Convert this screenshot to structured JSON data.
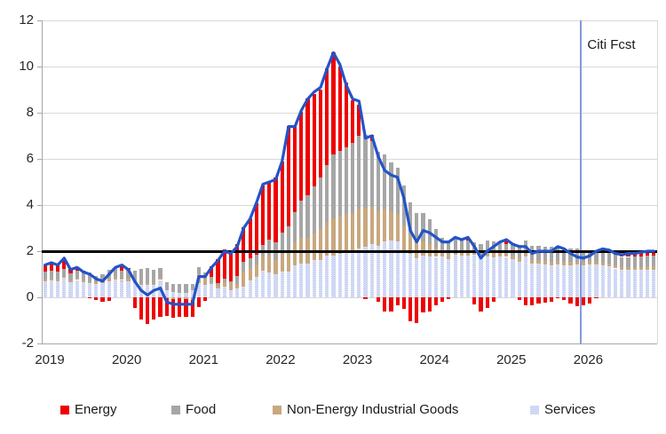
{
  "chart_data": {
    "type": "bar",
    "subtype": "stacked-monthly-contribution-bars-with-headline-line",
    "title": "",
    "x_axis": {
      "tick_labels": [
        "2019",
        "2020",
        "2021",
        "2022",
        "2023",
        "2024",
        "2025",
        "2026"
      ],
      "months_per_year": 12,
      "total_months": 96
    },
    "y_axis": {
      "min": -2,
      "max": 12,
      "step": 2,
      "ticks": [
        12,
        10,
        8,
        6,
        4,
        2,
        0,
        -2
      ],
      "tick_labels": [
        "12",
        "10",
        "8",
        "6",
        "4",
        "2",
        "0",
        "-2"
      ],
      "grid_color": "#d9d9d9"
    },
    "target_line": {
      "value": 2,
      "color": "#000000"
    },
    "forecast": {
      "label": "Citi Fcst",
      "start_month_index": 84,
      "line_color": "#849ade"
    },
    "line": {
      "color": "#2353c8",
      "values": [
        1.4,
        1.5,
        1.4,
        1.7,
        1.2,
        1.3,
        1.1,
        1.0,
        0.8,
        0.7,
        1.0,
        1.3,
        1.4,
        1.2,
        0.7,
        0.3,
        0.1,
        0.3,
        0.4,
        -0.2,
        -0.3,
        -0.3,
        -0.3,
        -0.3,
        0.9,
        0.9,
        1.3,
        1.6,
        2.0,
        1.9,
        2.2,
        3.0,
        3.4,
        4.1,
        4.9,
        5.0,
        5.1,
        5.9,
        7.4,
        7.4,
        8.1,
        8.6,
        8.9,
        9.1,
        9.9,
        10.6,
        10.1,
        9.2,
        8.6,
        8.5,
        6.9,
        7.0,
        6.1,
        5.5,
        5.3,
        5.2,
        4.3,
        2.9,
        2.4,
        2.9,
        2.8,
        2.6,
        2.4,
        2.4,
        2.6,
        2.5,
        2.6,
        2.2,
        1.7,
        2.0,
        2.2,
        2.4,
        2.5,
        2.3,
        2.2,
        2.2,
        1.9,
        2.0,
        2.0,
        2.0,
        2.2,
        2.1,
        1.9,
        1.75,
        1.7,
        1.8,
        2.0,
        2.1,
        2.05,
        1.9,
        1.85,
        1.9,
        1.9,
        1.95,
        2.0,
        2.0
      ]
    },
    "stack_order_bottom_to_top": [
      "Services",
      "Non-Energy Industrial Goods",
      "Food",
      "Energy"
    ],
    "series": [
      {
        "name": "Energy",
        "color": "#ee0000",
        "values": [
          0.25,
          0.3,
          0.3,
          0.45,
          0.2,
          0.15,
          0.05,
          -0.05,
          -0.1,
          -0.2,
          -0.15,
          0.02,
          0.18,
          0.04,
          -0.45,
          -0.95,
          -1.15,
          -0.95,
          -0.84,
          -0.78,
          -0.81,
          -0.8,
          -0.78,
          -0.7,
          -0.42,
          -0.17,
          0.43,
          1.02,
          1.28,
          1.23,
          1.4,
          1.51,
          1.72,
          2.21,
          2.57,
          2.46,
          2.8,
          3.1,
          4.36,
          3.7,
          3.87,
          4.19,
          3.99,
          3.8,
          4.19,
          4.44,
          3.67,
          2.79,
          1.85,
          1.36,
          -0.09,
          0.25,
          -0.18,
          -0.62,
          -0.62,
          -0.34,
          -0.51,
          -1.05,
          -1.1,
          -0.67,
          -0.63,
          -0.36,
          -0.18,
          -0.06,
          0.03,
          0.02,
          0.12,
          -0.3,
          -0.6,
          -0.46,
          -0.19,
          0.01,
          0.18,
          0.02,
          -0.1,
          -0.35,
          -0.36,
          -0.27,
          -0.24,
          -0.19,
          -0.04,
          -0.1,
          -0.25,
          -0.4,
          -0.35,
          -0.25,
          -0.05,
          0.1,
          0.12,
          0.1,
          0.12,
          0.15,
          0.15,
          0.17,
          0.18,
          0.18
        ]
      },
      {
        "name": "Food",
        "color": "#a6a6a6",
        "values": [
          0.35,
          0.35,
          0.33,
          0.32,
          0.3,
          0.32,
          0.35,
          0.4,
          0.3,
          0.3,
          0.4,
          0.42,
          0.42,
          0.43,
          0.45,
          0.65,
          0.68,
          0.62,
          0.42,
          0.35,
          0.36,
          0.4,
          0.38,
          0.28,
          0.3,
          0.28,
          0.24,
          0.13,
          0.15,
          0.1,
          0.35,
          0.4,
          0.43,
          0.43,
          0.49,
          0.67,
          0.77,
          0.9,
          1.07,
          1.3,
          1.59,
          1.83,
          2.04,
          2.25,
          2.47,
          2.74,
          2.84,
          2.88,
          3.05,
          3.15,
          3.14,
          2.84,
          2.58,
          2.35,
          2.12,
          1.98,
          1.73,
          1.4,
          1.25,
          1.22,
          1.08,
          0.79,
          0.53,
          0.55,
          0.52,
          0.5,
          0.45,
          0.46,
          0.47,
          0.56,
          0.53,
          0.51,
          0.45,
          0.51,
          0.57,
          0.58,
          0.62,
          0.61,
          0.63,
          0.64,
          0.66,
          0.62,
          0.58,
          0.55,
          0.52,
          0.5,
          0.5,
          0.5,
          0.48,
          0.46,
          0.45,
          0.45,
          0.46,
          0.47,
          0.48,
          0.48
        ]
      },
      {
        "name": "Non-Energy Industrial Goods",
        "color": "#c8a87e",
        "values": [
          0.08,
          0.09,
          0.08,
          0.05,
          0.08,
          0.08,
          0.09,
          0.07,
          0.06,
          0.07,
          0.09,
          0.1,
          0.07,
          0.11,
          0.11,
          0.08,
          0.05,
          0.05,
          0.1,
          -0.03,
          -0.08,
          -0.03,
          -0.08,
          -0.13,
          0.38,
          0.26,
          0.09,
          0.11,
          0.18,
          0.31,
          0.18,
          0.66,
          0.55,
          0.53,
          0.62,
          0.76,
          0.6,
          0.8,
          0.89,
          1.0,
          1.13,
          1.13,
          1.16,
          1.33,
          1.47,
          1.62,
          1.61,
          1.7,
          1.72,
          1.74,
          1.71,
          1.62,
          1.51,
          1.42,
          1.26,
          1.21,
          1.08,
          0.83,
          0.72,
          0.63,
          0.52,
          0.42,
          0.3,
          0.23,
          0.18,
          0.17,
          0.19,
          0.11,
          0.11,
          0.12,
          0.17,
          0.13,
          0.12,
          0.15,
          0.15,
          0.14,
          0.15,
          0.13,
          0.14,
          0.15,
          0.16,
          0.15,
          0.14,
          0.13,
          0.12,
          0.12,
          0.13,
          0.13,
          0.13,
          0.12,
          0.12,
          0.12,
          0.13,
          0.13,
          0.14,
          0.14
        ]
      },
      {
        "name": "Services",
        "color": "#aebcee",
        "pattern": "checker",
        "pattern_colors": [
          "#aebcee",
          "#eef1fb"
        ],
        "values": [
          0.7,
          0.72,
          0.7,
          0.85,
          0.65,
          0.75,
          0.65,
          0.6,
          0.58,
          0.62,
          0.7,
          0.78,
          0.68,
          0.7,
          0.6,
          0.52,
          0.55,
          0.53,
          0.75,
          0.3,
          0.22,
          0.18,
          0.2,
          0.3,
          0.62,
          0.53,
          0.57,
          0.38,
          0.48,
          0.3,
          0.38,
          0.46,
          0.72,
          0.9,
          1.16,
          1.07,
          1.01,
          1.1,
          1.12,
          1.38,
          1.46,
          1.46,
          1.6,
          1.62,
          1.8,
          1.82,
          1.88,
          1.93,
          1.92,
          2.1,
          2.19,
          2.32,
          2.23,
          2.43,
          2.47,
          2.41,
          2.05,
          1.9,
          1.7,
          1.81,
          1.77,
          1.75,
          1.76,
          1.64,
          1.83,
          1.8,
          1.82,
          1.83,
          1.73,
          1.77,
          1.74,
          1.78,
          1.75,
          1.65,
          1.55,
          1.76,
          1.45,
          1.48,
          1.43,
          1.4,
          1.42,
          1.4,
          1.38,
          1.42,
          1.4,
          1.42,
          1.42,
          1.38,
          1.33,
          1.25,
          1.18,
          1.18,
          1.18,
          1.18,
          1.2,
          1.2
        ]
      }
    ],
    "legend": {
      "items": [
        {
          "label": "Energy"
        },
        {
          "label": "Food"
        },
        {
          "label": "Non-Energy Industrial Goods"
        },
        {
          "label": "Services"
        }
      ]
    }
  }
}
